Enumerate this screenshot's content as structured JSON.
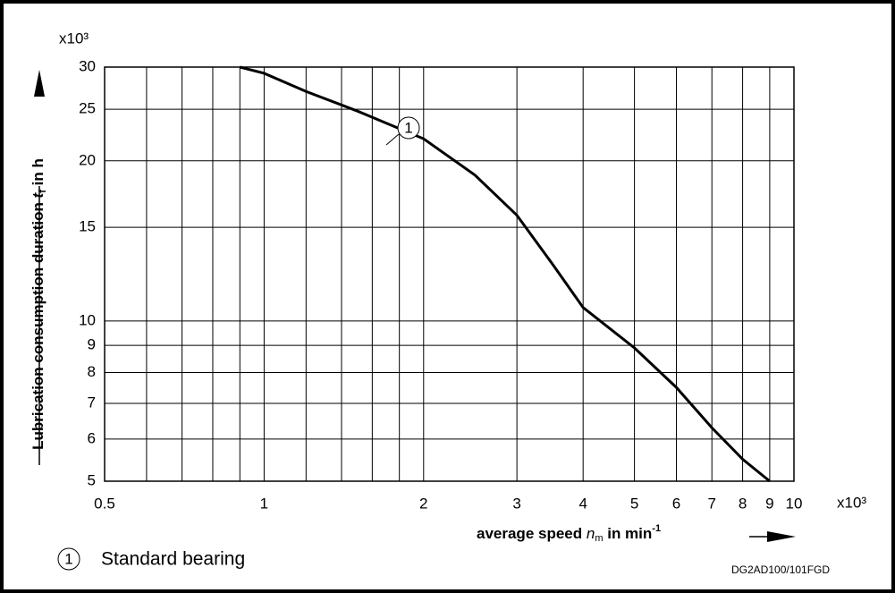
{
  "chart_data": {
    "type": "line",
    "y_unit": "x10³",
    "x_unit": "x10³",
    "y_label": [
      "Lubrication consumption duration ",
      "t",
      "f",
      " in h"
    ],
    "x_label": [
      "average speed ",
      "n",
      "m",
      " in min",
      "-1"
    ],
    "code": "DG2AD100/101FGD",
    "xscale": "log",
    "yscale": "log",
    "grid": true,
    "xlim": [
      0.5,
      10
    ],
    "ylim": [
      5,
      30
    ],
    "xticks": [
      0.5,
      1,
      2,
      3,
      4,
      5,
      6,
      7,
      8,
      9,
      10
    ],
    "xminor": [
      0.6,
      0.7,
      0.8,
      0.9,
      1.2,
      1.4,
      1.6,
      1.8
    ],
    "yticks": [
      5,
      6,
      7,
      8,
      9,
      10,
      15,
      20,
      25,
      30
    ],
    "x": [
      0.9,
      1,
      1.2,
      1.5,
      2,
      2.5,
      3,
      3.5,
      4,
      5,
      6,
      7,
      8,
      9
    ],
    "series": [
      {
        "name": "Standard bearing",
        "marker_label": "1",
        "color": "#000000",
        "values": [
          30,
          29.2,
          27,
          24.8,
          22,
          18.8,
          15.8,
          12.8,
          10.6,
          8.9,
          7.5,
          6.3,
          5.5,
          5
        ]
      }
    ]
  }
}
